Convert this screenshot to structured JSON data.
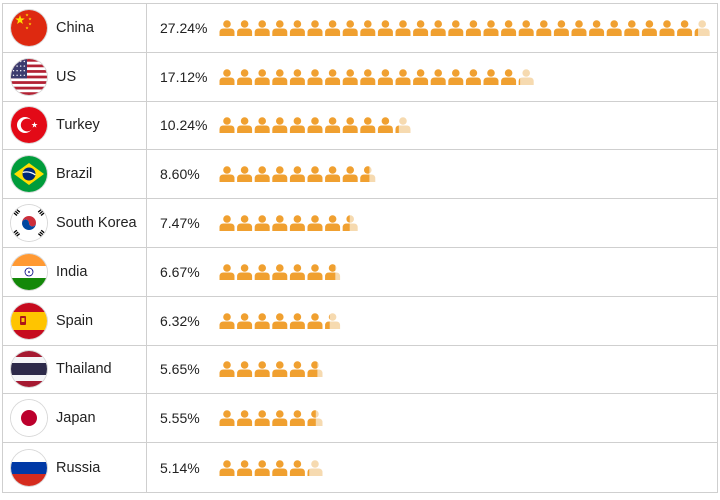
{
  "chart_data": {
    "type": "bar",
    "title": "",
    "xlabel": "",
    "ylabel": "",
    "unit": "%",
    "icon": "person-icon",
    "icon_color": "#F0A030",
    "icon_faded_color": "#F6DAB0",
    "percent_per_icon": 1.0,
    "categories": [
      "China",
      "US",
      "Turkey",
      "Brazil",
      "South Korea",
      "India",
      "Spain",
      "Thailand",
      "Japan",
      "Russia"
    ],
    "values": [
      27.24,
      17.12,
      10.24,
      8.6,
      7.47,
      6.67,
      6.32,
      5.65,
      5.55,
      5.14
    ],
    "labels": [
      "27.24%",
      "17.12%",
      "10.24%",
      "8.60%",
      "7.47%",
      "6.67%",
      "6.32%",
      "5.65%",
      "5.55%",
      "5.14%"
    ],
    "flags": [
      "china-flag-icon",
      "us-flag-icon",
      "turkey-flag-icon",
      "brazil-flag-icon",
      "south-korea-flag-icon",
      "india-flag-icon",
      "spain-flag-icon",
      "thailand-flag-icon",
      "japan-flag-icon",
      "russia-flag-icon"
    ]
  }
}
